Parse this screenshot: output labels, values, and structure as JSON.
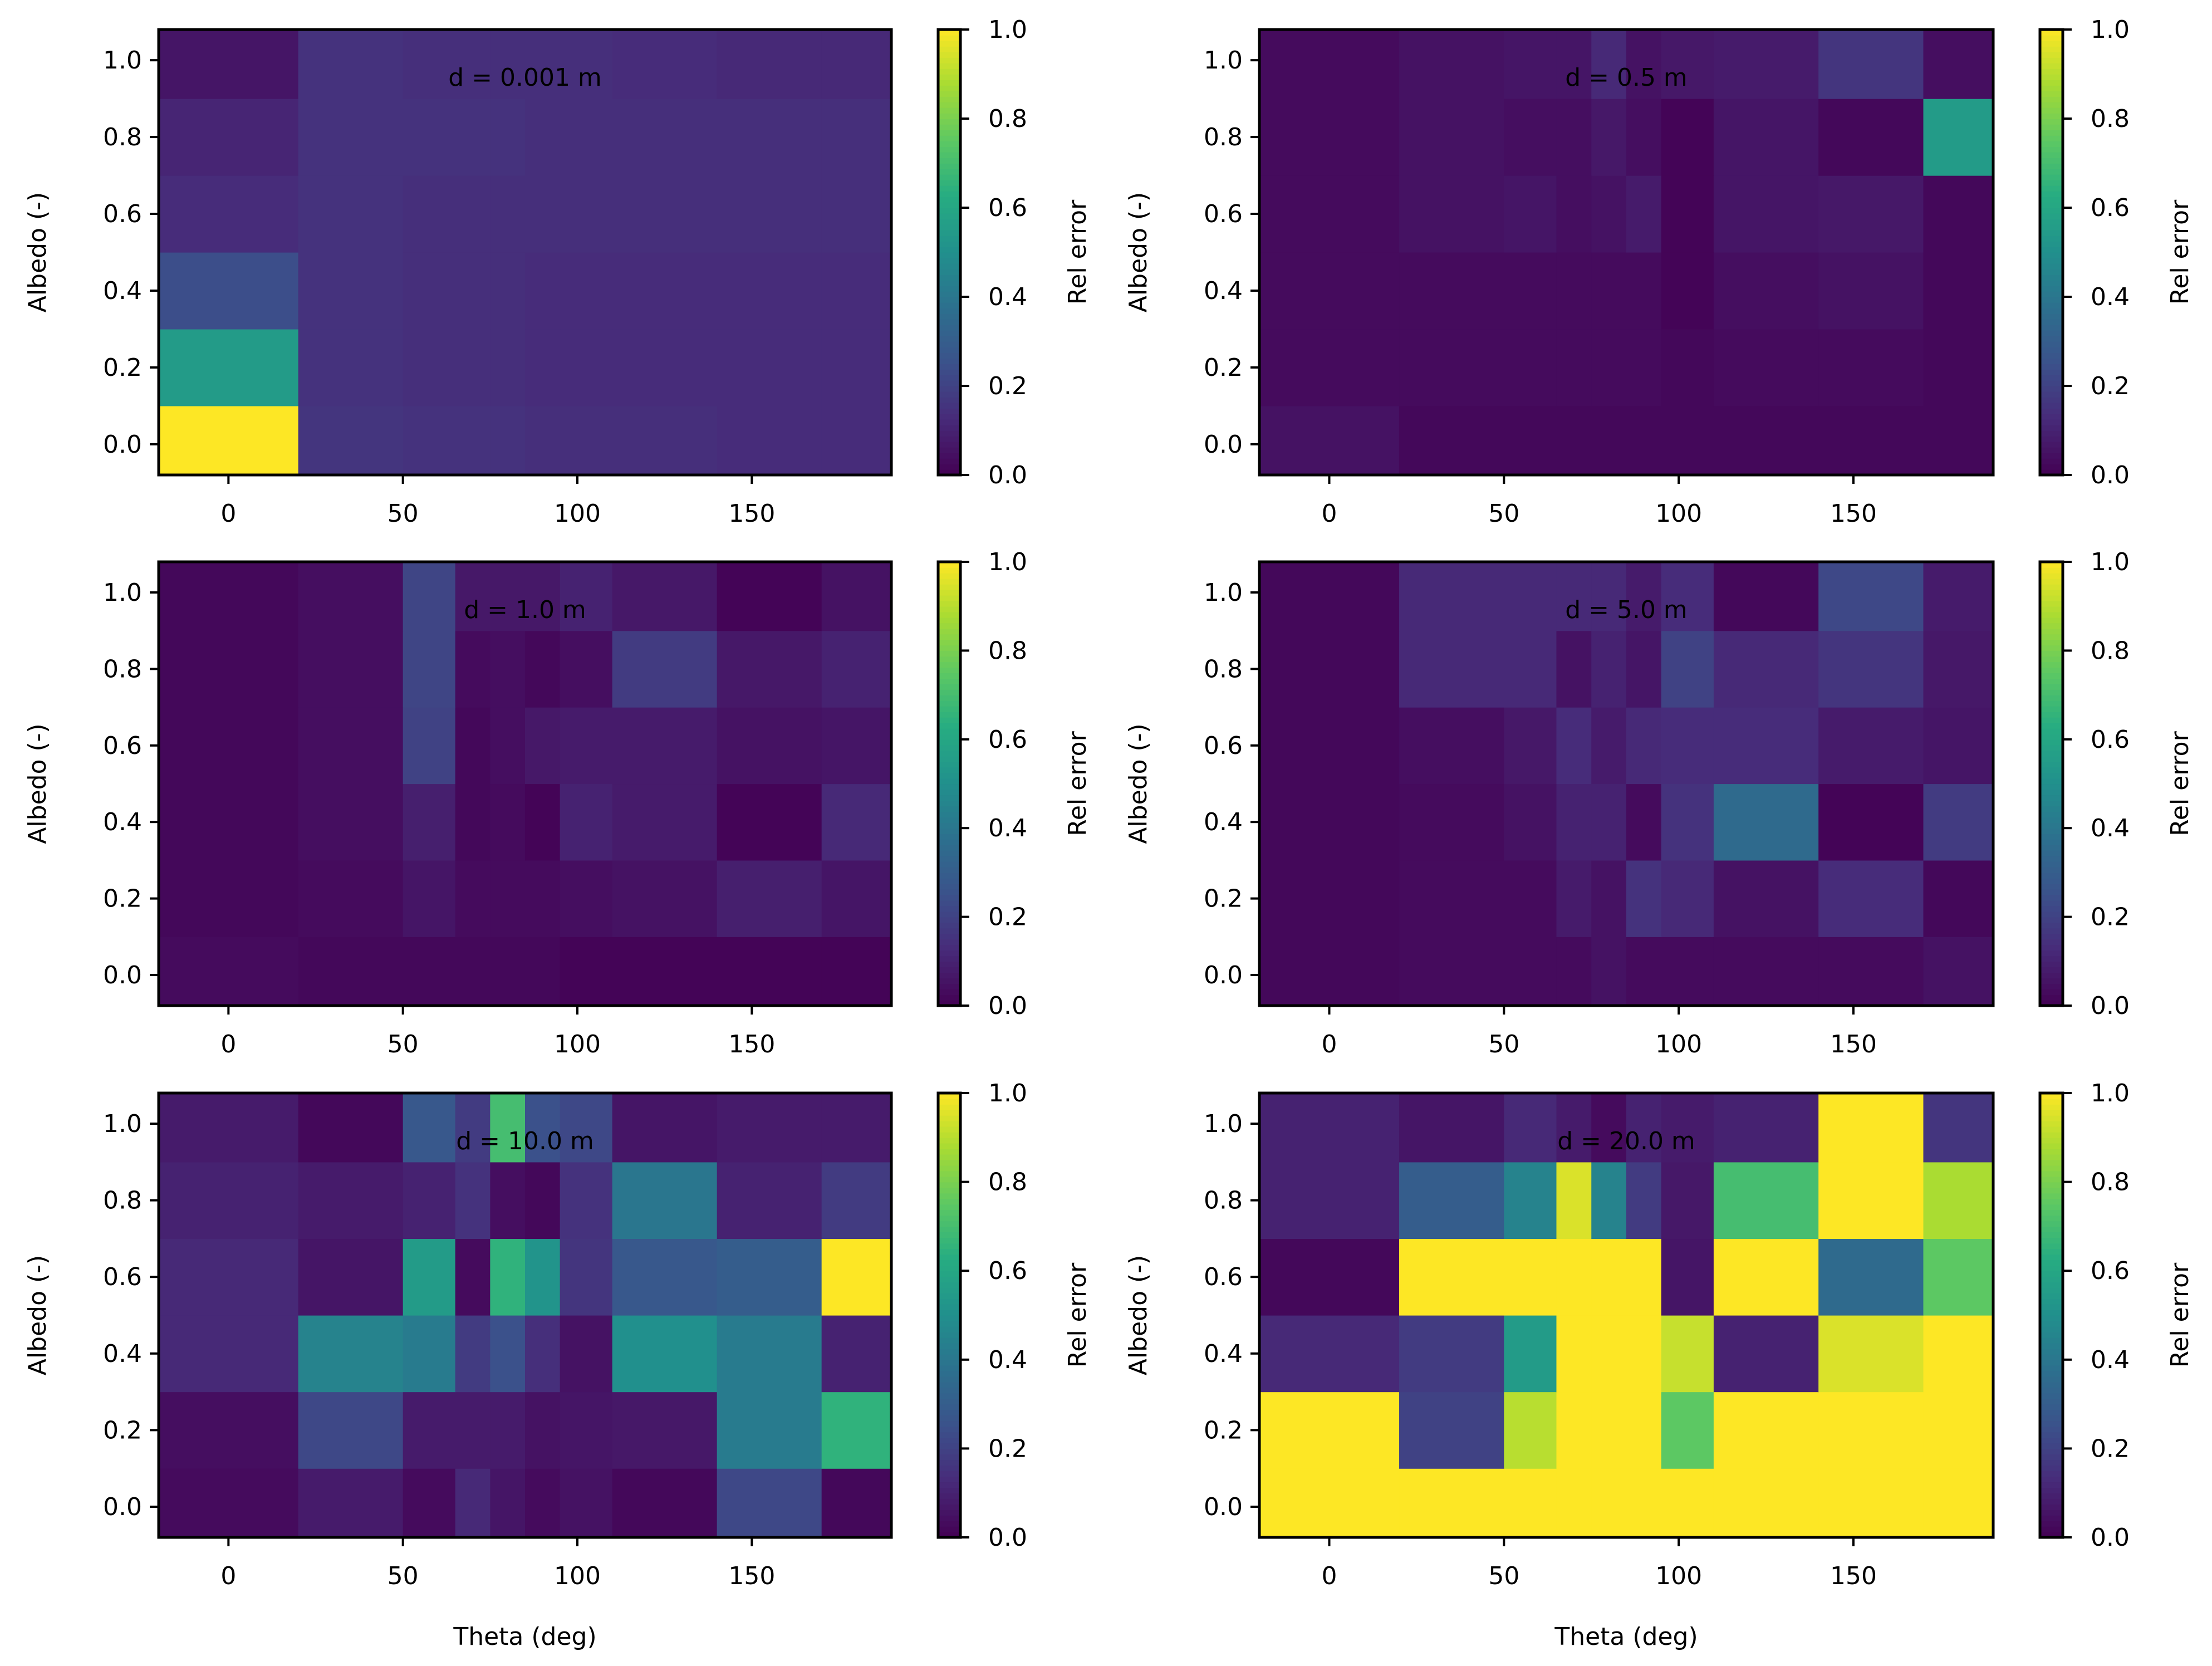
{
  "figure": {
    "colormap": "viridis",
    "colorbar_label": "Rel error",
    "colorbar_range": [
      0,
      1
    ],
    "colorbar_ticks": [
      "0.0",
      "0.2",
      "0.4",
      "0.6",
      "0.8",
      "1.0"
    ],
    "colors": {
      "frame": "#000000",
      "background": "#ffffff"
    }
  },
  "chart_data": [
    {
      "type": "heatmap",
      "title": "d = 0.001 m",
      "xlabel": "",
      "ylabel": "Albedo (-)",
      "xlim": [
        -20,
        190
      ],
      "ylim": [
        -0.08,
        1.08
      ],
      "xticks": [
        "0",
        "50",
        "100",
        "150"
      ],
      "yticks": [
        "0.0",
        "0.2",
        "0.4",
        "0.6",
        "0.8",
        "1.0"
      ],
      "theta_edges": [
        -20,
        20,
        50,
        65,
        75,
        85,
        95,
        110,
        140,
        170,
        190
      ],
      "albedo": [
        0.0,
        0.2,
        0.4,
        0.6,
        0.8,
        1.0
      ],
      "values": [
        [
          1.0,
          0.16,
          0.15,
          0.15,
          0.15,
          0.14,
          0.14,
          0.14,
          0.13,
          0.13
        ],
        [
          0.55,
          0.15,
          0.14,
          0.14,
          0.14,
          0.13,
          0.13,
          0.13,
          0.13,
          0.13
        ],
        [
          0.24,
          0.15,
          0.14,
          0.14,
          0.14,
          0.13,
          0.13,
          0.13,
          0.13,
          0.13
        ],
        [
          0.13,
          0.15,
          0.14,
          0.14,
          0.14,
          0.14,
          0.14,
          0.14,
          0.14,
          0.14
        ],
        [
          0.11,
          0.15,
          0.15,
          0.15,
          0.15,
          0.14,
          0.14,
          0.14,
          0.14,
          0.14
        ],
        [
          0.06,
          0.15,
          0.14,
          0.14,
          0.14,
          0.14,
          0.14,
          0.13,
          0.12,
          0.12
        ]
      ]
    },
    {
      "type": "heatmap",
      "title": "d = 0.5 m",
      "xlabel": "",
      "ylabel": "Albedo (-)",
      "xlim": [
        -20,
        190
      ],
      "ylim": [
        -0.08,
        1.08
      ],
      "xticks": [
        "0",
        "50",
        "100",
        "150"
      ],
      "yticks": [
        "0.0",
        "0.2",
        "0.4",
        "0.6",
        "0.8",
        "1.0"
      ],
      "theta_edges": [
        -20,
        20,
        50,
        65,
        75,
        85,
        95,
        110,
        140,
        170,
        190
      ],
      "albedo": [
        0.0,
        0.2,
        0.4,
        0.6,
        0.8,
        1.0
      ],
      "values": [
        [
          0.05,
          0.02,
          0.02,
          0.02,
          0.02,
          0.02,
          0.02,
          0.02,
          0.02,
          0.02
        ],
        [
          0.03,
          0.03,
          0.03,
          0.03,
          0.03,
          0.03,
          0.02,
          0.03,
          0.03,
          0.02
        ],
        [
          0.03,
          0.03,
          0.03,
          0.03,
          0.03,
          0.03,
          0.01,
          0.04,
          0.05,
          0.02
        ],
        [
          0.03,
          0.05,
          0.06,
          0.04,
          0.05,
          0.08,
          0.01,
          0.06,
          0.07,
          0.02
        ],
        [
          0.03,
          0.05,
          0.04,
          0.04,
          0.07,
          0.04,
          0.01,
          0.06,
          0.02,
          0.55
        ],
        [
          0.03,
          0.05,
          0.06,
          0.06,
          0.12,
          0.05,
          0.07,
          0.08,
          0.16,
          0.04
        ]
      ]
    },
    {
      "type": "heatmap",
      "title": "d = 1.0 m",
      "xlabel": "",
      "ylabel": "Albedo (-)",
      "xlim": [
        -20,
        190
      ],
      "ylim": [
        -0.08,
        1.08
      ],
      "xticks": [
        "0",
        "50",
        "100",
        "150"
      ],
      "yticks": [
        "0.0",
        "0.2",
        "0.4",
        "0.6",
        "0.8",
        "1.0"
      ],
      "theta_edges": [
        -20,
        20,
        50,
        65,
        75,
        85,
        95,
        110,
        140,
        170,
        190
      ],
      "albedo": [
        0.0,
        0.2,
        0.4,
        0.6,
        0.8,
        1.0
      ],
      "values": [
        [
          0.03,
          0.02,
          0.02,
          0.02,
          0.02,
          0.02,
          0.01,
          0.01,
          0.01,
          0.01
        ],
        [
          0.02,
          0.03,
          0.06,
          0.03,
          0.03,
          0.03,
          0.04,
          0.05,
          0.09,
          0.06
        ],
        [
          0.02,
          0.04,
          0.09,
          0.02,
          0.03,
          0.01,
          0.1,
          0.08,
          0.01,
          0.12
        ],
        [
          0.02,
          0.04,
          0.2,
          0.02,
          0.04,
          0.07,
          0.08,
          0.08,
          0.05,
          0.06
        ],
        [
          0.02,
          0.04,
          0.21,
          0.03,
          0.04,
          0.02,
          0.04,
          0.18,
          0.07,
          0.1
        ],
        [
          0.02,
          0.04,
          0.21,
          0.07,
          0.07,
          0.07,
          0.1,
          0.07,
          0.01,
          0.05
        ]
      ]
    },
    {
      "type": "heatmap",
      "title": "d = 5.0 m",
      "xlabel": "",
      "ylabel": "Albedo (-)",
      "xlim": [
        -20,
        190
      ],
      "ylim": [
        -0.08,
        1.08
      ],
      "xticks": [
        "0",
        "50",
        "100",
        "150"
      ],
      "yticks": [
        "0.0",
        "0.2",
        "0.4",
        "0.6",
        "0.8",
        "1.0"
      ],
      "theta_edges": [
        -20,
        20,
        50,
        65,
        75,
        85,
        95,
        110,
        140,
        170,
        190
      ],
      "albedo": [
        0.0,
        0.2,
        0.4,
        0.6,
        0.8,
        1.0
      ],
      "values": [
        [
          0.02,
          0.03,
          0.03,
          0.03,
          0.05,
          0.03,
          0.03,
          0.03,
          0.03,
          0.05
        ],
        [
          0.02,
          0.03,
          0.03,
          0.08,
          0.05,
          0.15,
          0.12,
          0.05,
          0.13,
          0.02
        ],
        [
          0.02,
          0.03,
          0.05,
          0.1,
          0.1,
          0.03,
          0.15,
          0.35,
          0.01,
          0.18
        ],
        [
          0.02,
          0.04,
          0.07,
          0.13,
          0.08,
          0.12,
          0.13,
          0.13,
          0.08,
          0.06
        ],
        [
          0.02,
          0.12,
          0.12,
          0.05,
          0.1,
          0.06,
          0.2,
          0.12,
          0.16,
          0.07
        ],
        [
          0.02,
          0.12,
          0.12,
          0.12,
          0.12,
          0.08,
          0.13,
          0.02,
          0.22,
          0.08
        ]
      ]
    },
    {
      "type": "heatmap",
      "title": "d = 10.0 m",
      "xlabel": "Theta (deg)",
      "ylabel": "Albedo (-)",
      "xlim": [
        -20,
        190
      ],
      "ylim": [
        -0.08,
        1.08
      ],
      "xticks": [
        "0",
        "50",
        "100",
        "150"
      ],
      "yticks": [
        "0.0",
        "0.2",
        "0.4",
        "0.6",
        "0.8",
        "1.0"
      ],
      "theta_edges": [
        -20,
        20,
        50,
        65,
        75,
        85,
        95,
        110,
        140,
        170,
        190
      ],
      "albedo": [
        0.0,
        0.2,
        0.4,
        0.6,
        0.8,
        1.0
      ],
      "values": [
        [
          0.03,
          0.08,
          0.03,
          0.12,
          0.06,
          0.03,
          0.05,
          0.02,
          0.22,
          0.02
        ],
        [
          0.04,
          0.22,
          0.08,
          0.08,
          0.08,
          0.05,
          0.06,
          0.07,
          0.42,
          0.65
        ],
        [
          0.12,
          0.45,
          0.42,
          0.18,
          0.25,
          0.14,
          0.05,
          0.5,
          0.42,
          0.1
        ],
        [
          0.12,
          0.06,
          0.55,
          0.03,
          0.65,
          0.52,
          0.16,
          0.28,
          0.3,
          1.0
        ],
        [
          0.1,
          0.08,
          0.1,
          0.15,
          0.04,
          0.02,
          0.15,
          0.4,
          0.1,
          0.18
        ],
        [
          0.08,
          0.02,
          0.28,
          0.18,
          0.7,
          0.25,
          0.22,
          0.06,
          0.08,
          0.08
        ]
      ]
    },
    {
      "type": "heatmap",
      "title": "d = 20.0 m",
      "xlabel": "Theta (deg)",
      "ylabel": "Albedo (-)",
      "xlim": [
        -20,
        190
      ],
      "ylim": [
        -0.08,
        1.08
      ],
      "xticks": [
        "0",
        "50",
        "100",
        "150"
      ],
      "yticks": [
        "0.0",
        "0.2",
        "0.4",
        "0.6",
        "0.8",
        "1.0"
      ],
      "theta_edges": [
        -20,
        20,
        50,
        65,
        75,
        85,
        95,
        110,
        140,
        170,
        190
      ],
      "albedo": [
        0.0,
        0.2,
        0.4,
        0.6,
        0.8,
        1.0
      ],
      "values": [
        [
          1.0,
          1.0,
          1.0,
          1.0,
          1.0,
          1.0,
          1.0,
          1.0,
          1.0,
          1.0
        ],
        [
          1.0,
          0.2,
          0.9,
          1.0,
          1.0,
          1.0,
          0.75,
          1.0,
          1.0,
          1.0
        ],
        [
          0.12,
          0.18,
          0.55,
          1.0,
          1.0,
          1.0,
          0.92,
          0.1,
          0.95,
          1.0
        ],
        [
          0.02,
          1.0,
          1.0,
          1.0,
          1.0,
          1.0,
          0.06,
          1.0,
          0.35,
          0.75
        ],
        [
          0.1,
          0.3,
          0.45,
          0.95,
          0.45,
          0.18,
          0.07,
          0.7,
          1.0,
          0.88
        ],
        [
          0.1,
          0.06,
          0.12,
          0.08,
          0.03,
          0.1,
          0.08,
          0.1,
          1.0,
          0.16
        ]
      ]
    }
  ]
}
